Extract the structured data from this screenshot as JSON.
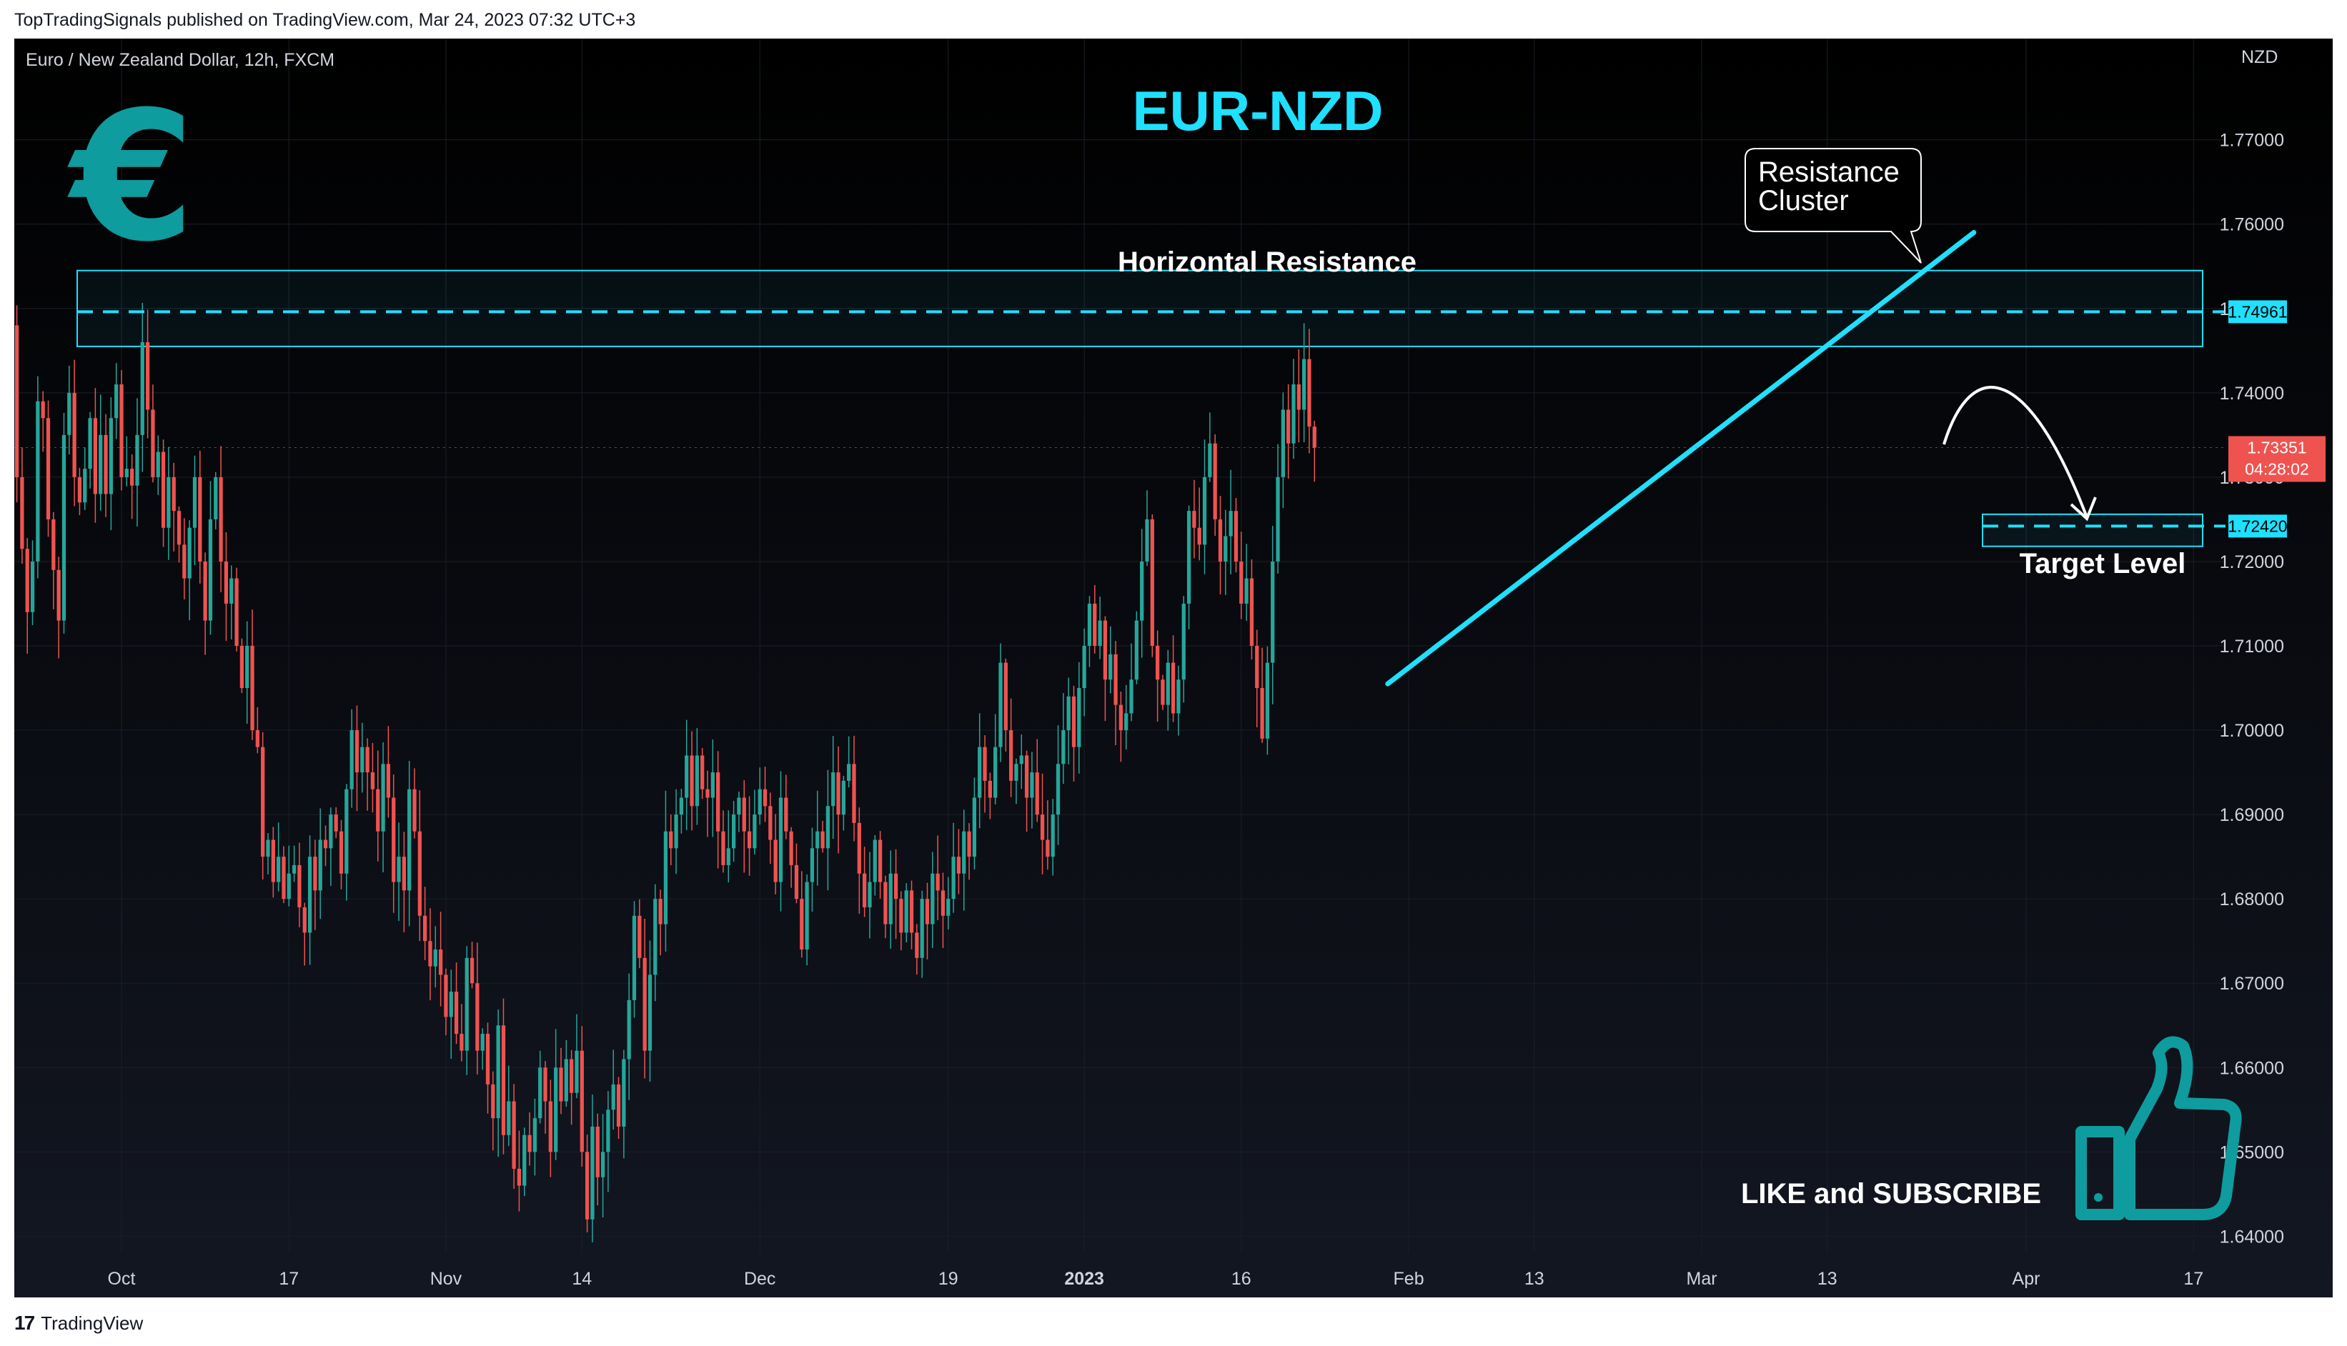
{
  "publisher_line": "TopTradingSignals published on TradingView.com, Mar 24, 2023 07:32 UTC+3",
  "footer": {
    "logo_text": "17",
    "brand": "TradingView"
  },
  "symbol_line": "Euro / New Zealand Dollar, 12h, FXCM",
  "currency_label": "NZD",
  "euro_symbol": "€",
  "annotations": {
    "horizontal_resistance": "Horizontal Resistance",
    "resistance_cluster_line1": "Resistance",
    "resistance_cluster_line2": "Cluster",
    "target_level": "Target Level",
    "like_subscribe": "LIKE and SUBSCRIBE"
  },
  "price_tags": {
    "resistance": "1.74961",
    "current": "1.73351",
    "countdown": "04:28:02",
    "target": "1.72420"
  },
  "colors": {
    "background": "#0c0d11",
    "accent": "#1fe0ff",
    "teal": "#0e9c9e",
    "up": "#26a69a",
    "down": "#ef5350",
    "axis_text": "#d1d4dc"
  },
  "chart_data": {
    "type": "candlestick",
    "title": "EUR-NZD",
    "ylim": [
      1.638,
      1.782
    ],
    "y_ticks": [
      1.64,
      1.65,
      1.66,
      1.67,
      1.68,
      1.69,
      1.7,
      1.71,
      1.72,
      1.73,
      1.74,
      1.75,
      1.76,
      1.77
    ],
    "y_tick_labels": [
      "1.64000",
      "1.65000",
      "1.66000",
      "1.67000",
      "1.68000",
      "1.69000",
      "1.70000",
      "1.71000",
      "1.72000",
      "1.73000",
      "1.74000",
      "1.75000",
      "1.76000",
      "1.77000"
    ],
    "x_labels": [
      "Oct",
      "17",
      "Nov",
      "14",
      "Dec",
      "19",
      "2023",
      "16",
      "Feb",
      "13",
      "Mar",
      "13",
      "Apr",
      "17"
    ],
    "x_label_dates": [
      "2022-10-01",
      "2022-10-17",
      "2022-11-01",
      "2022-11-14",
      "2022-12-01",
      "2022-12-19",
      "2023-01-01",
      "2023-01-16",
      "2023-02-01",
      "2023-02-13",
      "2023-03-01",
      "2023-03-13",
      "2023-04-01",
      "2023-04-17"
    ],
    "first_bar_date": "2022-09-14",
    "bar_interval_hours": 12,
    "closes": [
      1.683,
      1.6845,
      1.681,
      1.688,
      1.6955,
      1.702,
      1.7015,
      1.692,
      1.706,
      1.7135,
      1.72,
      1.7245,
      1.732,
      1.748,
      1.73,
      1.7215,
      1.714,
      1.72,
      1.739,
      1.737,
      1.725,
      1.719,
      1.713,
      1.735,
      1.74,
      1.73,
      1.727,
      1.731,
      1.737,
      1.728,
      1.735,
      1.728,
      1.737,
      1.741,
      1.73,
      1.731,
      1.729,
      1.735,
      1.746,
      1.738,
      1.73,
      1.733,
      1.724,
      1.73,
      1.726,
      1.722,
      1.718,
      1.724,
      1.73,
      1.72,
      1.713,
      1.725,
      1.73,
      1.72,
      1.715,
      1.718,
      1.71,
      1.705,
      1.71,
      1.7,
      1.698,
      1.685,
      1.687,
      1.682,
      1.685,
      1.68,
      1.683,
      1.684,
      1.679,
      1.676,
      1.685,
      1.681,
      1.687,
      1.686,
      1.69,
      1.688,
      1.683,
      1.693,
      1.7,
      1.695,
      1.698,
      1.695,
      1.693,
      1.688,
      1.696,
      1.692,
      1.682,
      1.685,
      1.681,
      1.693,
      1.688,
      1.678,
      1.675,
      1.672,
      1.674,
      1.671,
      1.666,
      1.669,
      1.664,
      1.662,
      1.673,
      1.67,
      1.662,
      1.664,
      1.658,
      1.654,
      1.665,
      1.652,
      1.656,
      1.648,
      1.646,
      1.652,
      1.65,
      1.654,
      1.66,
      1.656,
      1.65,
      1.66,
      1.656,
      1.661,
      1.657,
      1.662,
      1.65,
      1.642,
      1.653,
      1.647,
      1.65,
      1.655,
      1.658,
      1.653,
      1.661,
      1.668,
      1.678,
      1.673,
      1.662,
      1.671,
      1.68,
      1.677,
      1.688,
      1.686,
      1.69,
      1.692,
      1.697,
      1.691,
      1.697,
      1.693,
      1.692,
      1.695,
      1.688,
      1.684,
      1.686,
      1.69,
      1.692,
      1.688,
      1.686,
      1.69,
      1.693,
      1.691,
      1.687,
      1.682,
      1.692,
      1.688,
      1.684,
      1.68,
      1.674,
      1.682,
      1.686,
      1.688,
      1.686,
      1.691,
      1.695,
      1.69,
      1.694,
      1.696,
      1.689,
      1.683,
      1.679,
      1.682,
      1.687,
      1.682,
      1.677,
      1.683,
      1.68,
      1.676,
      1.681,
      1.676,
      1.673,
      1.68,
      1.677,
      1.683,
      1.681,
      1.678,
      1.68,
      1.685,
      1.683,
      1.688,
      1.685,
      1.692,
      1.698,
      1.694,
      1.692,
      1.698,
      1.708,
      1.7,
      1.694,
      1.696,
      1.697,
      1.692,
      1.695,
      1.69,
      1.687,
      1.685,
      1.69,
      1.696,
      1.7,
      1.704,
      1.698,
      1.705,
      1.71,
      1.715,
      1.71,
      1.713,
      1.706,
      1.709,
      1.703,
      1.7,
      1.702,
      1.706,
      1.713,
      1.72,
      1.725,
      1.71,
      1.706,
      1.703,
      1.708,
      1.702,
      1.706,
      1.715,
      1.726,
      1.724,
      1.722,
      1.73,
      1.734,
      1.725,
      1.72,
      1.723,
      1.726,
      1.72,
      1.715,
      1.718,
      1.71,
      1.705,
      1.699,
      1.708,
      1.72,
      1.73,
      1.738,
      1.734,
      1.741,
      1.738,
      1.744,
      1.736,
      1.7335
    ],
    "series": [
      {
        "name": "EURNZD 12h",
        "type": "candlestick"
      }
    ],
    "horizontal_resistance_zone": [
      1.7455,
      1.7545
    ],
    "resistance_level": 1.74961,
    "current_price": 1.73351,
    "target_level": 1.7242,
    "target_zone": [
      1.7218,
      1.7256
    ],
    "trendline": {
      "from": {
        "date": "2023-01-30",
        "price": 1.7055
      },
      "to": {
        "date": "2023-03-27",
        "price": 1.759
      }
    }
  }
}
